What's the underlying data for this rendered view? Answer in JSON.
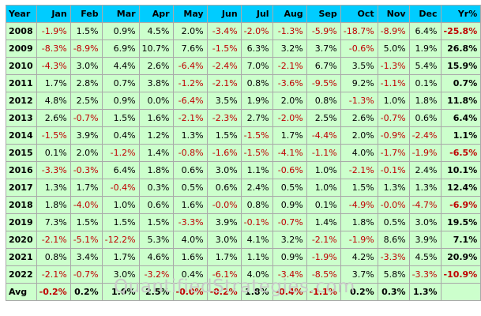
{
  "headers": [
    "Year",
    "Jan",
    "Feb",
    "Mar",
    "Apr",
    "May",
    "Jun",
    "Jul",
    "Aug",
    "Sep",
    "Oct",
    "Nov",
    "Dec",
    "Yr%"
  ],
  "rows": [
    {
      "year": "2008",
      "values": [
        "-1.9%",
        "1.5%",
        "0.9%",
        "4.5%",
        "2.0%",
        "-3.4%",
        "-2.0%",
        "-1.3%",
        "-5.9%",
        "-18.7%",
        "-8.9%",
        "6.4%"
      ],
      "yr": "-25.8%"
    },
    {
      "year": "2009",
      "values": [
        "-8.3%",
        "-8.9%",
        "6.9%",
        "10.7%",
        "7.6%",
        "-1.5%",
        "6.3%",
        "3.2%",
        "3.7%",
        "-0.6%",
        "5.0%",
        "1.9%"
      ],
      "yr": "26.8%"
    },
    {
      "year": "2010",
      "values": [
        "-4.3%",
        "3.0%",
        "4.4%",
        "2.6%",
        "-6.4%",
        "-2.4%",
        "7.0%",
        "-2.1%",
        "6.7%",
        "3.5%",
        "-1.3%",
        "5.4%"
      ],
      "yr": "15.9%"
    },
    {
      "year": "2011",
      "values": [
        "1.7%",
        "2.8%",
        "0.7%",
        "3.8%",
        "-1.2%",
        "-2.1%",
        "0.8%",
        "-3.6%",
        "-9.5%",
        "9.2%",
        "-1.1%",
        "0.1%"
      ],
      "yr": "0.7%"
    },
    {
      "year": "2012",
      "values": [
        "4.8%",
        "2.5%",
        "0.9%",
        "0.0%",
        "-6.4%",
        "3.5%",
        "1.9%",
        "2.0%",
        "0.8%",
        "-1.3%",
        "1.0%",
        "1.8%"
      ],
      "yr": "11.8%"
    },
    {
      "year": "2013",
      "values": [
        "2.6%",
        "-0.7%",
        "1.5%",
        "1.6%",
        "-2.1%",
        "-2.3%",
        "2.7%",
        "-2.0%",
        "2.5%",
        "2.6%",
        "-0.7%",
        "0.6%"
      ],
      "yr": "6.4%"
    },
    {
      "year": "2014",
      "values": [
        "-1.5%",
        "3.9%",
        "0.4%",
        "1.2%",
        "1.3%",
        "1.5%",
        "-1.5%",
        "1.7%",
        "-4.4%",
        "2.0%",
        "-0.9%",
        "-2.4%"
      ],
      "yr": "1.1%"
    },
    {
      "year": "2015",
      "values": [
        "0.1%",
        "2.0%",
        "-1.2%",
        "1.4%",
        "-0.8%",
        "-1.6%",
        "-1.5%",
        "-4.1%",
        "-1.1%",
        "4.0%",
        "-1.7%",
        "-1.9%"
      ],
      "yr": "-6.5%"
    },
    {
      "year": "2016",
      "values": [
        "-3.3%",
        "-0.3%",
        "6.4%",
        "1.8%",
        "0.6%",
        "3.0%",
        "1.1%",
        "-0.6%",
        "1.0%",
        "-2.1%",
        "-0.1%",
        "2.4%"
      ],
      "yr": "10.1%"
    },
    {
      "year": "2017",
      "values": [
        "1.3%",
        "1.7%",
        "-0.4%",
        "0.3%",
        "0.5%",
        "0.6%",
        "2.4%",
        "0.5%",
        "1.0%",
        "1.5%",
        "1.3%",
        "1.3%"
      ],
      "yr": "12.4%"
    },
    {
      "year": "2018",
      "values": [
        "1.8%",
        "-4.0%",
        "1.0%",
        "0.6%",
        "1.6%",
        "-0.0%",
        "0.8%",
        "0.9%",
        "0.1%",
        "-4.9%",
        "-0.0%",
        "-4.7%"
      ],
      "yr": "-6.9%"
    },
    {
      "year": "2019",
      "values": [
        "7.3%",
        "1.5%",
        "1.5%",
        "1.5%",
        "-3.3%",
        "3.9%",
        "-0.1%",
        "-0.7%",
        "1.4%",
        "1.8%",
        "0.5%",
        "3.0%"
      ],
      "yr": "19.5%"
    },
    {
      "year": "2020",
      "values": [
        "-2.1%",
        "-5.1%",
        "-12.2%",
        "5.3%",
        "4.0%",
        "3.0%",
        "4.1%",
        "3.2%",
        "-2.1%",
        "-1.9%",
        "8.6%",
        "3.9%"
      ],
      "yr": "7.1%"
    },
    {
      "year": "2021",
      "values": [
        "0.8%",
        "3.4%",
        "1.7%",
        "4.6%",
        "1.6%",
        "1.7%",
        "1.1%",
        "0.9%",
        "-1.9%",
        "4.2%",
        "-3.3%",
        "4.5%"
      ],
      "yr": "20.9%"
    },
    {
      "year": "2022",
      "values": [
        "-2.1%",
        "-0.7%",
        "3.0%",
        "-3.2%",
        "0.4%",
        "-6.1%",
        "4.0%",
        "-3.4%",
        "-8.5%",
        "3.7%",
        "5.8%",
        "-3.3%"
      ],
      "yr": "-10.9%"
    }
  ],
  "avg": {
    "label": "Avg",
    "values": [
      "-0.2%",
      "0.2%",
      "1.0%",
      "2.5%",
      "-0.0%",
      "-0.2%",
      "1.8%",
      "-0.4%",
      "-1.1%",
      "0.2%",
      "0.3%",
      "1.3%"
    ],
    "yr": ""
  },
  "watermark": "QuantifiedStrategies.com",
  "colors": {
    "header": "#00ccff",
    "cell": "#ccffcc",
    "negative": "#c00000",
    "positive": "#000000",
    "border": "#a9a9a9"
  }
}
